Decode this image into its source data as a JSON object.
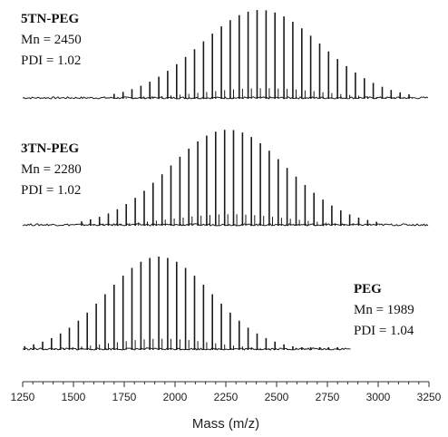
{
  "chart_data": {
    "type": "bar",
    "xlabel": "Mass (m/z)",
    "ylabel": "",
    "xlim": [
      1250,
      3250
    ],
    "x_ticks": [
      1250,
      1500,
      1750,
      2000,
      2250,
      2500,
      2750,
      3000,
      3250
    ],
    "tick_labels": [
      "1250",
      "1500",
      "1750",
      "2000",
      "2250",
      "2500",
      "2750",
      "3000",
      "3250"
    ],
    "grid": false,
    "colors": {
      "spectrum": "#1a1a1a",
      "axis": "#333333"
    },
    "spectra": [
      {
        "name": "5TN-PEG",
        "lines": [
          "Mn = 2450",
          "PDI = 1.02"
        ],
        "x_range": [
          1250,
          3250
        ],
        "peak_range": [
          1700,
          3170
        ],
        "peak_spacing": 44,
        "center": 2420,
        "sigma": 300,
        "relative_height": 1.0,
        "annotation_position": "left"
      },
      {
        "name": "3TN-PEG",
        "lines": [
          "Mn = 2280",
          "PDI = 1.02"
        ],
        "x_range": [
          1250,
          3250
        ],
        "peak_range": [
          1540,
          3010
        ],
        "peak_spacing": 44,
        "center": 2260,
        "sigma": 290,
        "relative_height": 1.0,
        "annotation_position": "left"
      },
      {
        "name": "PEG",
        "lines": [
          "Mn = 1989",
          "PDI = 1.04"
        ],
        "x_range": [
          1250,
          2870
        ],
        "peak_range": [
          1260,
          2830
        ],
        "peak_spacing": 44,
        "center": 1920,
        "sigma": 260,
        "relative_height": 1.0,
        "annotation_position": "right"
      }
    ]
  }
}
